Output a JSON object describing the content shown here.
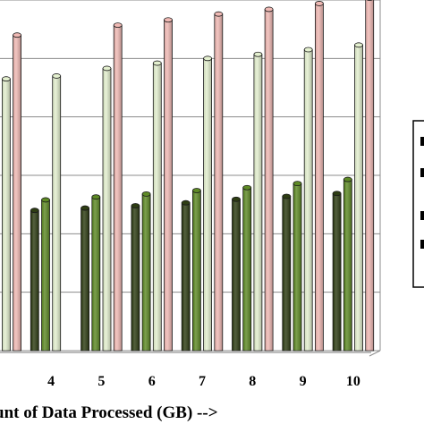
{
  "chart_data": {
    "type": "bar",
    "bar_style": "3d-cylinder",
    "xlabel": "unt of Data Processed (GB) -->",
    "categories": [
      "",
      "4",
      "5",
      "6",
      "7",
      "8",
      "9",
      "10"
    ],
    "series": [
      {
        "color": "#2e3d13",
        "values": [
          null,
          240,
          244,
          248,
          253,
          259,
          264,
          269
        ]
      },
      {
        "color": "#5e8a25",
        "values": [
          null,
          258,
          263,
          268,
          274,
          279,
          286,
          293
        ]
      },
      {
        "color": "#e4f0cf",
        "values": [
          465,
          470,
          483,
          492,
          500,
          507,
          515,
          523
        ]
      },
      {
        "color": "#f0b9b4",
        "values": [
          540,
          null,
          557,
          566,
          576,
          584,
          594,
          603
        ]
      }
    ],
    "ylim": [
      0,
      600
    ],
    "grid": true,
    "legend": "right, partially visible"
  }
}
